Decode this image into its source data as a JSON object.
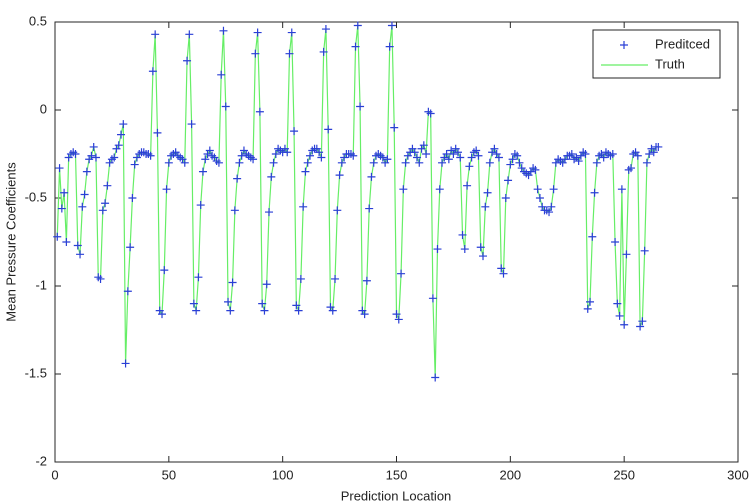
{
  "chart_data": {
    "type": "line",
    "xlabel": "Prediction Location",
    "ylabel": "Mean Pressure Coefficients",
    "xlim": [
      0,
      300
    ],
    "xticks": [
      0,
      50,
      100,
      150,
      200,
      250,
      300
    ],
    "ylim": [
      -2,
      0.5
    ],
    "yticks": [
      -2,
      -1.5,
      -1,
      -0.5,
      0,
      0.5
    ],
    "legend": "upper right",
    "x": [
      1,
      2,
      3,
      4,
      5,
      6,
      7,
      8,
      9,
      10,
      11,
      12,
      13,
      14,
      15,
      16,
      17,
      18,
      19,
      20,
      21,
      22,
      23,
      24,
      25,
      26,
      27,
      28,
      29,
      30,
      31,
      32,
      33,
      34,
      35,
      36,
      37,
      38,
      39,
      40,
      41,
      42,
      43,
      44,
      45,
      46,
      47,
      48,
      49,
      50,
      51,
      52,
      53,
      54,
      55,
      56,
      57,
      58,
      59,
      60,
      61,
      62,
      63,
      64,
      65,
      66,
      67,
      68,
      69,
      70,
      71,
      72,
      73,
      74,
      75,
      76,
      77,
      78,
      79,
      80,
      81,
      82,
      83,
      84,
      85,
      86,
      87,
      88,
      89,
      90,
      91,
      92,
      93,
      94,
      95,
      96,
      97,
      98,
      99,
      100,
      101,
      102,
      103,
      104,
      105,
      106,
      107,
      108,
      109,
      110,
      111,
      112,
      113,
      114,
      115,
      116,
      117,
      118,
      119,
      120,
      121,
      122,
      123,
      124,
      125,
      126,
      127,
      128,
      129,
      130,
      131,
      132,
      133,
      134,
      135,
      136,
      137,
      138,
      139,
      140,
      141,
      142,
      143,
      144,
      145,
      146,
      147,
      148,
      149,
      150,
      151,
      152,
      153,
      154,
      155,
      156,
      157,
      158,
      159,
      160,
      161,
      162,
      163,
      164,
      165,
      166,
      167,
      168,
      169,
      170,
      171,
      172,
      173,
      174,
      175,
      176,
      177,
      178,
      179,
      180,
      181,
      182,
      183,
      184,
      185,
      186,
      187,
      188,
      189,
      190,
      191,
      192,
      193,
      194,
      195,
      196,
      197,
      198,
      199,
      200,
      201,
      202,
      203,
      204,
      205,
      206,
      207,
      208,
      209,
      210,
      211,
      212,
      213,
      214,
      215,
      216,
      217,
      218,
      219,
      220,
      221,
      222,
      223,
      224,
      225,
      226,
      227,
      228,
      229,
      230,
      231,
      232,
      233,
      234,
      235,
      236,
      237,
      238,
      239,
      240,
      241,
      242,
      243,
      244,
      245,
      246,
      247,
      248,
      249,
      250,
      251,
      252,
      253,
      254,
      255,
      256,
      257,
      258,
      259,
      260,
      261,
      262,
      263,
      264,
      265
    ],
    "series": [
      {
        "name": "Preditced",
        "color": "#2a3fd6",
        "marker": "+",
        "values": [
          -0.72,
          -0.33,
          -0.56,
          -0.47,
          -0.75,
          -0.27,
          -0.25,
          -0.24,
          -0.25,
          -0.77,
          -0.82,
          -0.55,
          -0.48,
          -0.35,
          -0.28,
          -0.26,
          -0.21,
          -0.27,
          -0.95,
          -0.96,
          -0.57,
          -0.53,
          -0.43,
          -0.3,
          -0.28,
          -0.27,
          -0.22,
          -0.2,
          -0.14,
          -0.08,
          -1.44,
          -1.03,
          -0.78,
          -0.5,
          -0.31,
          -0.27,
          -0.25,
          -0.24,
          -0.24,
          -0.25,
          -0.25,
          -0.26,
          0.22,
          0.43,
          -0.13,
          -1.14,
          -1.16,
          -0.91,
          -0.45,
          -0.3,
          -0.26,
          -0.25,
          -0.24,
          -0.26,
          -0.27,
          -0.28,
          -0.3,
          0.28,
          0.43,
          -0.08,
          -1.1,
          -1.14,
          -0.95,
          -0.54,
          -0.35,
          -0.28,
          -0.25,
          -0.23,
          -0.26,
          -0.27,
          -0.29,
          -0.3,
          0.2,
          0.45,
          0.02,
          -1.09,
          -1.14,
          -0.98,
          -0.57,
          -0.39,
          -0.3,
          -0.26,
          -0.23,
          -0.25,
          -0.26,
          -0.27,
          -0.28,
          0.32,
          0.44,
          -0.01,
          -1.1,
          -1.14,
          -0.99,
          -0.58,
          -0.38,
          -0.3,
          -0.25,
          -0.22,
          -0.23,
          -0.24,
          -0.22,
          -0.24,
          0.32,
          0.44,
          -0.12,
          -1.11,
          -1.14,
          -0.96,
          -0.55,
          -0.35,
          -0.3,
          -0.26,
          -0.23,
          -0.22,
          -0.22,
          -0.24,
          -0.27,
          0.33,
          0.46,
          -0.11,
          -1.12,
          -1.14,
          -0.96,
          -0.57,
          -0.37,
          -0.3,
          -0.27,
          -0.25,
          -0.25,
          -0.25,
          -0.26,
          0.36,
          0.48,
          0.02,
          -1.14,
          -1.16,
          -0.97,
          -0.56,
          -0.38,
          -0.3,
          -0.26,
          -0.25,
          -0.26,
          -0.27,
          -0.3,
          -0.28,
          0.36,
          0.48,
          -0.1,
          -1.16,
          -1.19,
          -0.93,
          -0.45,
          -0.3,
          -0.26,
          -0.24,
          -0.22,
          -0.24,
          -0.27,
          -0.3,
          -0.22,
          -0.2,
          -0.25,
          -0.01,
          -0.02,
          -1.07,
          -1.52,
          -0.79,
          -0.45,
          -0.3,
          -0.27,
          -0.25,
          -0.28,
          -0.23,
          -0.25,
          -0.22,
          -0.24,
          -0.27,
          -0.71,
          -0.79,
          -0.43,
          -0.32,
          -0.27,
          -0.24,
          -0.23,
          -0.26,
          -0.78,
          -0.83,
          -0.55,
          -0.47,
          -0.3,
          -0.24,
          -0.22,
          -0.25,
          -0.27,
          -0.9,
          -0.93,
          -0.5,
          -0.4,
          -0.31,
          -0.28,
          -0.25,
          -0.26,
          -0.3,
          -0.33,
          -0.35,
          -0.36,
          -0.37,
          -0.35,
          -0.33,
          -0.34,
          -0.45,
          -0.5,
          -0.55,
          -0.57,
          -0.57,
          -0.58,
          -0.55,
          -0.45,
          -0.3,
          -0.28,
          -0.29,
          -0.3,
          -0.28,
          -0.26,
          -0.26,
          -0.25,
          -0.28,
          -0.27,
          -0.29,
          -0.26,
          -0.24,
          -0.25,
          -1.13,
          -1.09,
          -0.72,
          -0.47,
          -0.3,
          -0.26,
          -0.25,
          -0.27,
          -0.24,
          -0.25,
          -0.26,
          -0.25,
          -0.75,
          -1.1,
          -1.17,
          -0.45,
          -1.22,
          -0.82,
          -0.34,
          -0.33,
          -0.25,
          -0.24,
          -0.26,
          -1.23,
          -1.2,
          -0.8,
          -0.3,
          -0.25,
          -0.22,
          -0.24,
          -0.21,
          -0.21
        ]
      },
      {
        "name": "Truth",
        "color": "#66ee66",
        "values": [
          -0.72,
          -0.33,
          -0.56,
          -0.47,
          -0.75,
          -0.27,
          -0.25,
          -0.24,
          -0.25,
          -0.77,
          -0.82,
          -0.55,
          -0.48,
          -0.35,
          -0.28,
          -0.26,
          -0.21,
          -0.27,
          -0.95,
          -0.96,
          -0.57,
          -0.53,
          -0.43,
          -0.3,
          -0.28,
          -0.27,
          -0.22,
          -0.2,
          -0.14,
          -0.08,
          -1.44,
          -1.03,
          -0.78,
          -0.5,
          -0.31,
          -0.27,
          -0.25,
          -0.24,
          -0.24,
          -0.25,
          -0.25,
          -0.26,
          0.22,
          0.43,
          -0.13,
          -1.14,
          -1.16,
          -0.91,
          -0.45,
          -0.3,
          -0.26,
          -0.25,
          -0.24,
          -0.26,
          -0.27,
          -0.28,
          -0.3,
          0.28,
          0.43,
          -0.08,
          -1.1,
          -1.14,
          -0.95,
          -0.54,
          -0.35,
          -0.28,
          -0.25,
          -0.23,
          -0.26,
          -0.27,
          -0.29,
          -0.3,
          0.2,
          0.45,
          0.02,
          -1.09,
          -1.14,
          -0.98,
          -0.57,
          -0.39,
          -0.3,
          -0.26,
          -0.23,
          -0.25,
          -0.26,
          -0.27,
          -0.28,
          0.32,
          0.44,
          -0.01,
          -1.1,
          -1.14,
          -0.99,
          -0.58,
          -0.38,
          -0.3,
          -0.25,
          -0.22,
          -0.23,
          -0.24,
          -0.22,
          -0.24,
          0.32,
          0.44,
          -0.12,
          -1.11,
          -1.14,
          -0.96,
          -0.55,
          -0.35,
          -0.3,
          -0.26,
          -0.23,
          -0.22,
          -0.22,
          -0.24,
          -0.27,
          0.33,
          0.46,
          -0.11,
          -1.12,
          -1.14,
          -0.96,
          -0.57,
          -0.37,
          -0.3,
          -0.27,
          -0.25,
          -0.25,
          -0.25,
          -0.26,
          0.36,
          0.48,
          0.02,
          -1.14,
          -1.16,
          -0.97,
          -0.56,
          -0.38,
          -0.3,
          -0.26,
          -0.25,
          -0.26,
          -0.27,
          -0.3,
          -0.28,
          0.36,
          0.48,
          -0.1,
          -1.16,
          -1.19,
          -0.93,
          -0.45,
          -0.3,
          -0.26,
          -0.24,
          -0.22,
          -0.24,
          -0.27,
          -0.3,
          -0.22,
          -0.2,
          -0.25,
          -0.01,
          -0.02,
          -1.07,
          -1.52,
          -0.79,
          -0.45,
          -0.3,
          -0.27,
          -0.25,
          -0.28,
          -0.23,
          -0.25,
          -0.22,
          -0.24,
          -0.27,
          -0.71,
          -0.79,
          -0.43,
          -0.32,
          -0.27,
          -0.24,
          -0.23,
          -0.26,
          -0.78,
          -0.83,
          -0.55,
          -0.47,
          -0.3,
          -0.24,
          -0.22,
          -0.25,
          -0.27,
          -0.9,
          -0.93,
          -0.5,
          -0.4,
          -0.31,
          -0.28,
          -0.25,
          -0.26,
          -0.3,
          -0.33,
          -0.35,
          -0.36,
          -0.37,
          -0.35,
          -0.33,
          -0.34,
          -0.45,
          -0.5,
          -0.55,
          -0.57,
          -0.57,
          -0.58,
          -0.55,
          -0.45,
          -0.3,
          -0.28,
          -0.29,
          -0.3,
          -0.28,
          -0.26,
          -0.26,
          -0.25,
          -0.28,
          -0.27,
          -0.29,
          -0.26,
          -0.24,
          -0.25,
          -1.13,
          -1.09,
          -0.72,
          -0.47,
          -0.3,
          -0.26,
          -0.25,
          -0.27,
          -0.24,
          -0.25,
          -0.26,
          -0.25,
          -0.75,
          -1.1,
          -1.17,
          -0.45,
          -1.22,
          -0.82,
          -0.34,
          -0.33,
          -0.25,
          -0.24,
          -0.26,
          -1.23,
          -1.2,
          -0.8,
          -0.3,
          -0.25,
          -0.22,
          -0.24,
          -0.21,
          -0.21
        ]
      }
    ]
  }
}
